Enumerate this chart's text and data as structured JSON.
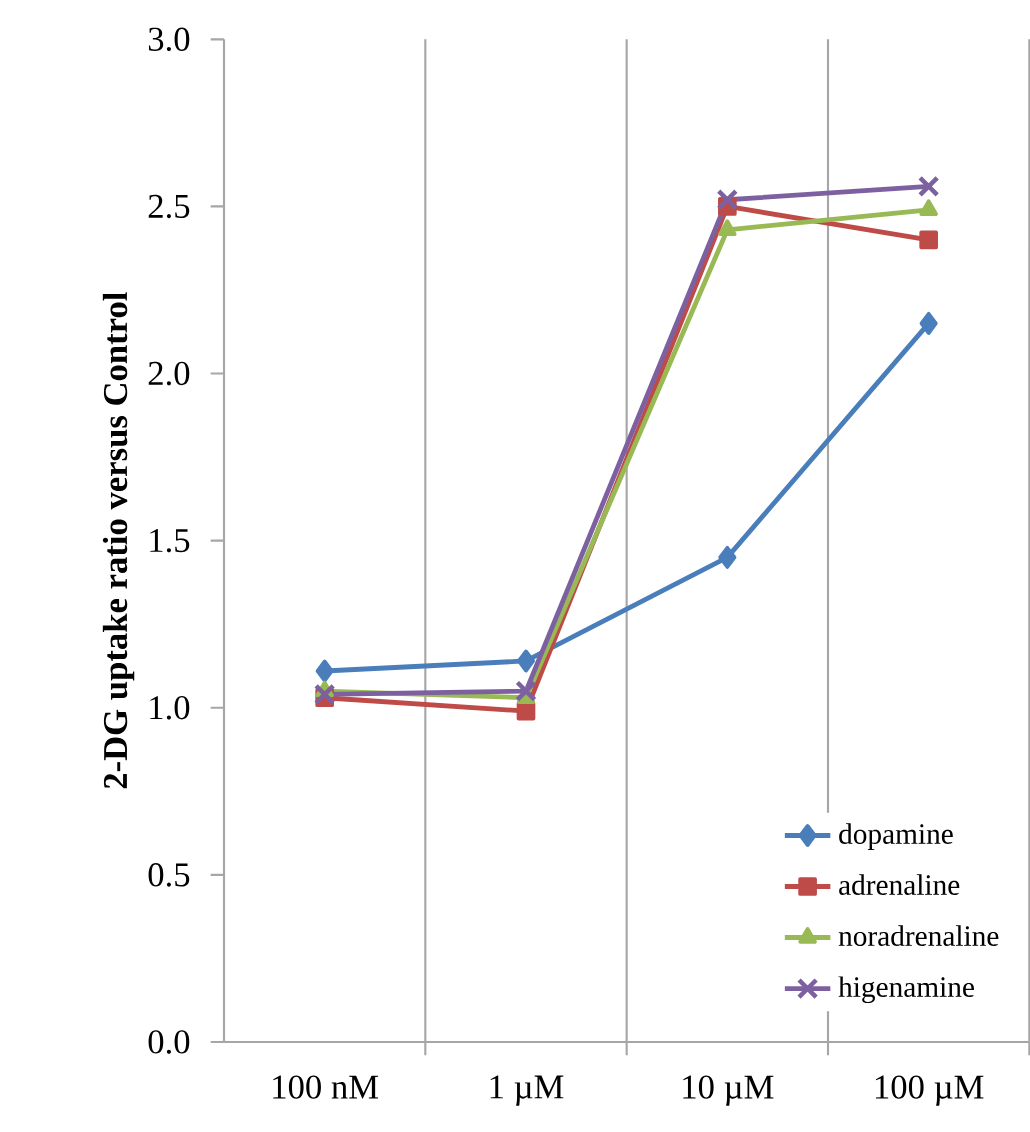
{
  "chart_data": {
    "type": "line",
    "ylabel": "2-DG uptake ratio versus Control",
    "categories": [
      "100 nM",
      "1 µM",
      "10 µM",
      "100 µM"
    ],
    "series": [
      {
        "name": "dopamine",
        "color": "#4a7ebb",
        "marker": "diamond",
        "values": [
          1.11,
          1.14,
          1.45,
          2.15
        ]
      },
      {
        "name": "adrenaline",
        "color": "#be4b48",
        "marker": "square",
        "values": [
          1.03,
          0.99,
          2.5,
          2.4
        ]
      },
      {
        "name": "noradrenaline",
        "color": "#98b954",
        "marker": "triangle",
        "values": [
          1.05,
          1.03,
          2.43,
          2.49
        ]
      },
      {
        "name": "higenamine",
        "color": "#7d60a0",
        "marker": "cross",
        "values": [
          1.04,
          1.05,
          2.52,
          2.56
        ]
      }
    ],
    "ylim": [
      0,
      3
    ],
    "yticks": [
      {
        "value": 0,
        "label": "0.0"
      },
      {
        "value": 0.5,
        "label": "0.5"
      },
      {
        "value": 1,
        "label": "1.0"
      },
      {
        "value": 1.5,
        "label": "1.5"
      },
      {
        "value": 2,
        "label": "2.0"
      },
      {
        "value": 2.5,
        "label": "2.5"
      },
      {
        "value": 3,
        "label": "3.0"
      }
    ],
    "grid": "x",
    "legend": "bottom right",
    "line_style": "solid"
  }
}
